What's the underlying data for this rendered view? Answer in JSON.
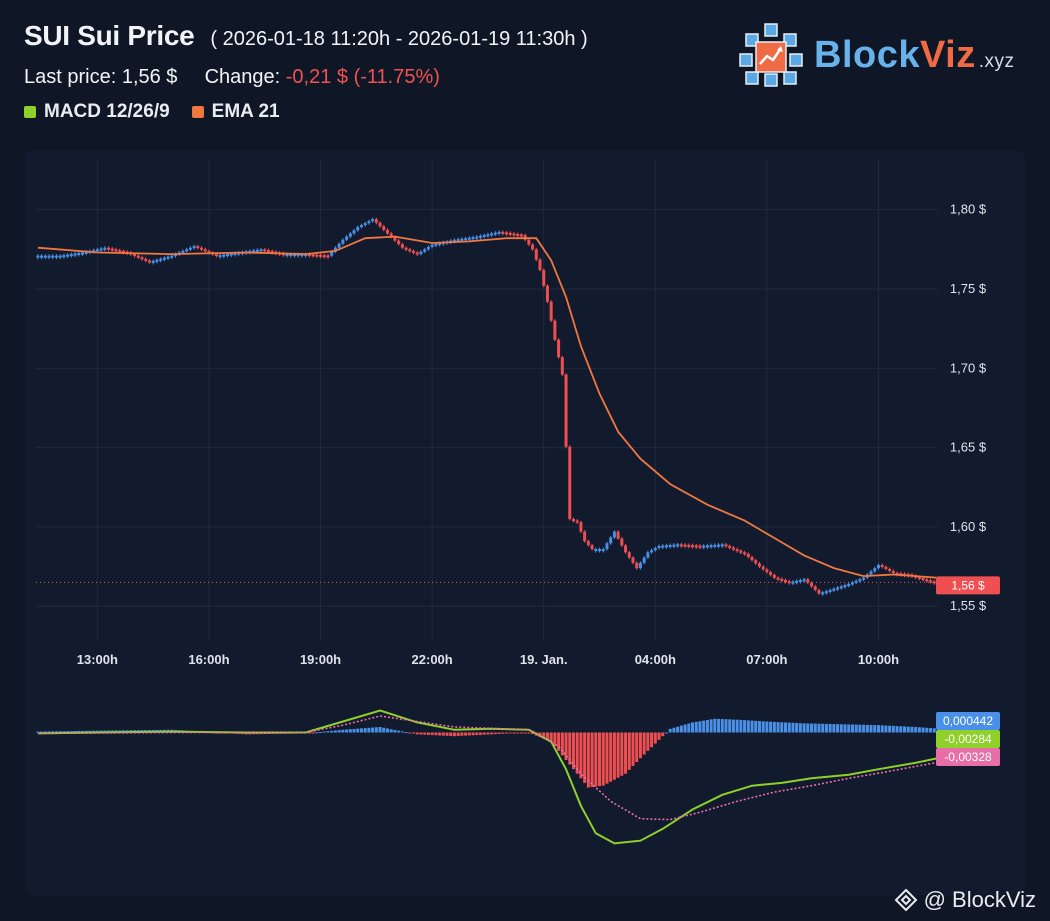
{
  "header": {
    "title": "SUI Sui Price",
    "range": "( 2026-01-18 11:20h - 2026-01-19 11:30h )",
    "last_price_label": "Last price:",
    "last_price_value": "1,56 $",
    "change_label": "Change:",
    "change_value": "-0,21 $ (-11.75%)"
  },
  "legend": {
    "macd": {
      "label": "MACD 12/26/9",
      "color": "#8fd02a"
    },
    "ema": {
      "label": "EMA 21",
      "color": "#f07840"
    }
  },
  "logo": {
    "part1": "Block",
    "part2": "Viz",
    "part3": ".xyz"
  },
  "watermark": {
    "text": "@ BlockViz"
  },
  "colors": {
    "up": "#4a90e8",
    "down": "#ef4f51",
    "signal": "#e86ea8",
    "macd_line": "#8fd02a",
    "ema_line": "#f07840"
  },
  "chart_data": {
    "type": "candlestick",
    "price_axis": {
      "ylim": [
        1.535,
        1.825
      ],
      "ticks": [
        1.8,
        1.75,
        1.7,
        1.65,
        1.6,
        1.55
      ],
      "tick_labels": [
        "1,80 $",
        "1,75 $",
        "1,70 $",
        "1,65 $",
        "1,60 $",
        "1,55 $"
      ],
      "last_price": 1.565,
      "last_price_label": "1,56 $"
    },
    "time_axis": {
      "xlim": [
        11.35,
        35.6
      ],
      "ticks": [
        13,
        16,
        19,
        22,
        25,
        28,
        31,
        34
      ],
      "tick_labels": [
        "13:00h",
        "16:00h",
        "19:00h",
        "22:00h",
        "19. Jan.",
        "04:00h",
        "07:00h",
        "10:00h"
      ]
    },
    "close_series": [
      [
        11.4,
        1.771
      ],
      [
        12.0,
        1.771
      ],
      [
        12.6,
        1.773
      ],
      [
        13.2,
        1.776
      ],
      [
        13.8,
        1.773
      ],
      [
        14.4,
        1.767
      ],
      [
        15.0,
        1.771
      ],
      [
        15.6,
        1.777
      ],
      [
        16.2,
        1.771
      ],
      [
        16.8,
        1.773
      ],
      [
        17.4,
        1.775
      ],
      [
        18.0,
        1.772
      ],
      [
        18.6,
        1.772
      ],
      [
        19.2,
        1.771
      ],
      [
        19.6,
        1.781
      ],
      [
        20.0,
        1.789
      ],
      [
        20.4,
        1.794
      ],
      [
        20.8,
        1.785
      ],
      [
        21.2,
        1.776
      ],
      [
        21.6,
        1.772
      ],
      [
        22.0,
        1.778
      ],
      [
        22.6,
        1.781
      ],
      [
        23.2,
        1.783
      ],
      [
        23.8,
        1.786
      ],
      [
        24.4,
        1.784
      ],
      [
        24.7,
        1.775
      ],
      [
        24.9,
        1.762
      ],
      [
        25.1,
        1.742
      ],
      [
        25.3,
        1.718
      ],
      [
        25.5,
        1.696
      ],
      [
        25.7,
        1.605
      ],
      [
        25.9,
        1.603
      ],
      [
        26.1,
        1.591
      ],
      [
        26.3,
        1.586
      ],
      [
        26.6,
        1.586
      ],
      [
        26.9,
        1.597
      ],
      [
        27.2,
        1.584
      ],
      [
        27.5,
        1.574
      ],
      [
        27.8,
        1.584
      ],
      [
        28.1,
        1.588
      ],
      [
        28.6,
        1.589
      ],
      [
        29.2,
        1.588
      ],
      [
        29.8,
        1.589
      ],
      [
        30.4,
        1.583
      ],
      [
        30.8,
        1.575
      ],
      [
        31.2,
        1.568
      ],
      [
        31.6,
        1.565
      ],
      [
        32.0,
        1.567
      ],
      [
        32.4,
        1.558
      ],
      [
        32.8,
        1.561
      ],
      [
        33.2,
        1.564
      ],
      [
        33.6,
        1.568
      ],
      [
        34.0,
        1.576
      ],
      [
        34.4,
        1.571
      ],
      [
        34.8,
        1.57
      ],
      [
        35.2,
        1.567
      ],
      [
        35.5,
        1.565
      ]
    ],
    "ema21": [
      [
        11.4,
        1.776
      ],
      [
        13.0,
        1.773
      ],
      [
        15.0,
        1.772
      ],
      [
        17.0,
        1.773
      ],
      [
        18.6,
        1.772
      ],
      [
        19.4,
        1.774
      ],
      [
        20.2,
        1.782
      ],
      [
        21.0,
        1.783
      ],
      [
        22.0,
        1.779
      ],
      [
        23.0,
        1.78
      ],
      [
        24.0,
        1.782
      ],
      [
        24.8,
        1.782
      ],
      [
        25.2,
        1.768
      ],
      [
        25.6,
        1.745
      ],
      [
        26.0,
        1.714
      ],
      [
        26.5,
        1.684
      ],
      [
        27.0,
        1.66
      ],
      [
        27.6,
        1.643
      ],
      [
        28.4,
        1.627
      ],
      [
        29.4,
        1.614
      ],
      [
        30.4,
        1.604
      ],
      [
        31.2,
        1.593
      ],
      [
        32.0,
        1.582
      ],
      [
        32.8,
        1.574
      ],
      [
        33.6,
        1.569
      ],
      [
        34.4,
        1.57
      ],
      [
        35.0,
        1.569
      ],
      [
        35.55,
        1.568
      ]
    ],
    "macd_axis": {
      "ylim": [
        -0.015,
        0.003
      ],
      "labels": [
        {
          "value": 0.000442,
          "text": "0,000442",
          "color": "#4a90e8"
        },
        {
          "value": -0.00284,
          "text": "-0,00284",
          "color": "#8fd02a"
        },
        {
          "value": -0.00328,
          "text": "-0,00328",
          "color": "#e86ea8"
        }
      ]
    },
    "macd_line": [
      [
        11.4,
        -0.0001
      ],
      [
        13.0,
        0.0
      ],
      [
        15.0,
        0.0001
      ],
      [
        17.0,
        0.0
      ],
      [
        18.6,
        0.0
      ],
      [
        19.6,
        0.0012
      ],
      [
        20.6,
        0.0024
      ],
      [
        21.6,
        0.0011
      ],
      [
        22.6,
        0.0003
      ],
      [
        23.6,
        0.0004
      ],
      [
        24.6,
        0.0003
      ],
      [
        25.2,
        -0.001
      ],
      [
        25.6,
        -0.004
      ],
      [
        26.0,
        -0.008
      ],
      [
        26.4,
        -0.011
      ],
      [
        26.9,
        -0.0121
      ],
      [
        27.6,
        -0.0118
      ],
      [
        28.2,
        -0.0105
      ],
      [
        29.0,
        -0.0084
      ],
      [
        29.8,
        -0.0068
      ],
      [
        30.6,
        -0.0058
      ],
      [
        31.4,
        -0.0055
      ],
      [
        32.2,
        -0.005
      ],
      [
        33.2,
        -0.0046
      ],
      [
        34.0,
        -0.004
      ],
      [
        35.0,
        -0.0033
      ],
      [
        35.55,
        -0.00284
      ]
    ],
    "signal_line": [
      [
        11.4,
        -0.0001
      ],
      [
        15.0,
        0.0
      ],
      [
        18.6,
        0.0
      ],
      [
        19.6,
        0.0008
      ],
      [
        20.6,
        0.0018
      ],
      [
        21.6,
        0.0012
      ],
      [
        22.6,
        0.0006
      ],
      [
        24.6,
        0.0003
      ],
      [
        25.4,
        -0.0015
      ],
      [
        26.0,
        -0.0045
      ],
      [
        26.8,
        -0.0075
      ],
      [
        27.6,
        -0.0094
      ],
      [
        28.4,
        -0.0095
      ],
      [
        29.2,
        -0.0087
      ],
      [
        30.2,
        -0.0075
      ],
      [
        31.2,
        -0.0065
      ],
      [
        32.2,
        -0.0058
      ],
      [
        33.2,
        -0.005
      ],
      [
        34.2,
        -0.0043
      ],
      [
        35.55,
        -0.00328
      ]
    ],
    "histogram": [
      [
        11.4,
        0.0001
      ],
      [
        13.0,
        0.0002
      ],
      [
        15.0,
        0.0003
      ],
      [
        17.0,
        -0.0002
      ],
      [
        18.6,
        -0.0001
      ],
      [
        19.6,
        0.0003
      ],
      [
        20.6,
        0.0006
      ],
      [
        21.6,
        -0.0002
      ],
      [
        22.6,
        -0.0004
      ],
      [
        24.6,
        0.0
      ],
      [
        25.2,
        -0.001
      ],
      [
        25.8,
        -0.004
      ],
      [
        26.2,
        -0.006
      ],
      [
        26.6,
        -0.0058
      ],
      [
        27.2,
        -0.0045
      ],
      [
        27.6,
        -0.0028
      ],
      [
        28.0,
        -0.0012
      ],
      [
        28.4,
        0.0004
      ],
      [
        29.0,
        0.0011
      ],
      [
        29.6,
        0.0015
      ],
      [
        30.2,
        0.0014
      ],
      [
        31.0,
        0.0012
      ],
      [
        32.0,
        0.001
      ],
      [
        33.0,
        0.0009
      ],
      [
        34.0,
        0.0008
      ],
      [
        35.0,
        0.0006
      ],
      [
        35.55,
        0.000442
      ]
    ]
  }
}
